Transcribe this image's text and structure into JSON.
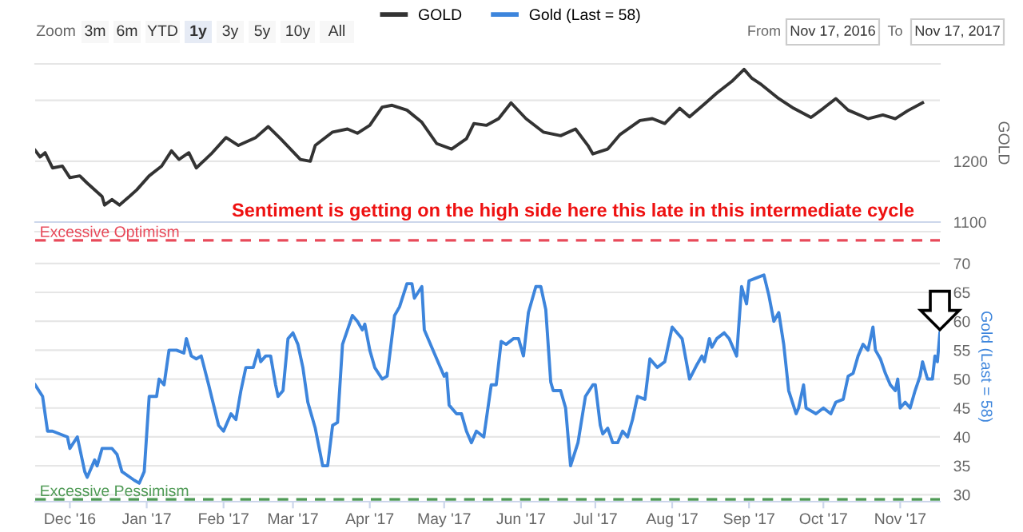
{
  "chart_data": [
    {
      "type": "line",
      "ylabel": "GOLD",
      "legend": "top",
      "grid": "y",
      "tick_labels": "y",
      "xlim": [
        "2016-11-17",
        "2017-11-17"
      ],
      "ylim": [
        1100,
        1360
      ],
      "yticks": [
        1100,
        1200,
        {
          "value": 1300,
          "label": null
        }
      ],
      "annotations": [
        "Zoom",
        "3m",
        "6m",
        "YTD",
        "1y",
        "3y",
        "5y",
        "10y",
        "All",
        "From",
        "Nov 17, 2016",
        "To",
        "Nov 17, 2017"
      ],
      "series": [
        {
          "name": "GOLD",
          "color": "#333333",
          "x": [
            "2016-11-17",
            "2016-11-19",
            "2016-11-21",
            "2016-11-24",
            "2016-11-28",
            "2016-12-01",
            "2016-12-05",
            "2016-12-08",
            "2016-12-14",
            "2016-12-15",
            "2016-12-18",
            "2016-12-21",
            "2016-12-25",
            "2016-12-28",
            "2017-01-02",
            "2017-01-07",
            "2017-01-11",
            "2017-01-14",
            "2017-01-18",
            "2017-01-21",
            "2017-01-27",
            "2017-02-02",
            "2017-02-07",
            "2017-02-14",
            "2017-02-19",
            "2017-02-24",
            "2017-03-04",
            "2017-03-08",
            "2017-03-10",
            "2017-03-17",
            "2017-03-23",
            "2017-03-27",
            "2017-04-01",
            "2017-04-06",
            "2017-04-10",
            "2017-04-16",
            "2017-04-22",
            "2017-04-28",
            "2017-05-04",
            "2017-05-10",
            "2017-05-13",
            "2017-05-18",
            "2017-05-23",
            "2017-05-28",
            "2017-06-03",
            "2017-06-10",
            "2017-06-17",
            "2017-06-23",
            "2017-06-28",
            "2017-06-30",
            "2017-07-06",
            "2017-07-11",
            "2017-07-19",
            "2017-07-24",
            "2017-07-29",
            "2017-08-04",
            "2017-08-08",
            "2017-08-14",
            "2017-08-19",
            "2017-08-25",
            "2017-08-30",
            "2017-09-02",
            "2017-09-06",
            "2017-09-13",
            "2017-09-19",
            "2017-09-26",
            "2017-10-01",
            "2017-10-06",
            "2017-10-11",
            "2017-10-19",
            "2017-10-25",
            "2017-10-30",
            "2017-11-04",
            "2017-11-10"
          ],
          "values": [
            1218,
            1207,
            1214,
            1189,
            1192,
            1173,
            1176,
            1164,
            1142,
            1128,
            1137,
            1128,
            1142,
            1153,
            1176,
            1192,
            1217,
            1203,
            1214,
            1189,
            1212,
            1239,
            1226,
            1239,
            1257,
            1237,
            1203,
            1200,
            1226,
            1248,
            1253,
            1246,
            1259,
            1289,
            1292,
            1284,
            1264,
            1229,
            1220,
            1237,
            1262,
            1259,
            1270,
            1296,
            1270,
            1248,
            1242,
            1253,
            1226,
            1212,
            1220,
            1244,
            1267,
            1270,
            1262,
            1287,
            1273,
            1294,
            1312,
            1331,
            1351,
            1337,
            1326,
            1303,
            1287,
            1272,
            1287,
            1303,
            1284,
            1270,
            1276,
            1270,
            1283,
            1296
          ]
        }
      ]
    },
    {
      "type": "line",
      "ylabel": "Gold (Last = 58)",
      "legend": "top",
      "grid": "y",
      "xlim": [
        "2016-11-17",
        "2017-11-17"
      ],
      "ylim": [
        28.8,
        75.5
      ],
      "yticks": [
        30,
        35,
        40,
        45,
        50,
        55,
        60,
        65,
        70
      ],
      "xticks": [
        {
          "value": "2016-12-01",
          "label": "Dec '16"
        },
        {
          "value": "2017-01-01",
          "label": "Jan '17"
        },
        {
          "value": "2017-02-01",
          "label": "Feb '17"
        },
        {
          "value": "2017-03-01",
          "label": "Mar '17"
        },
        {
          "value": "2017-04-01",
          "label": "Apr '17"
        },
        {
          "value": "2017-05-01",
          "label": "May '17"
        },
        {
          "value": "2017-06-01",
          "label": "Jun '17"
        },
        {
          "value": "2017-07-01",
          "label": "Jul '17"
        },
        {
          "value": "2017-08-01",
          "label": "Aug '17"
        },
        {
          "value": "2017-09-01",
          "label": "Sep '17"
        },
        {
          "value": "2017-10-01",
          "label": "Oct '17"
        },
        {
          "value": "2017-11-01",
          "label": "Nov '17"
        }
      ],
      "ref_lines": [
        {
          "axis": "y",
          "value": 74,
          "label": "Excessive Optimism",
          "color": "#e84a5a",
          "line_style": "dashed"
        },
        {
          "axis": "y",
          "value": 29.2,
          "label": "Excessive Pessimism",
          "color": "#4f9a55",
          "line_style": "dashed"
        }
      ],
      "annotations": [
        "Sentiment is getting on the high side here this late in this intermediate cycle"
      ],
      "series": [
        {
          "name": "Gold (Last = 58)",
          "color": "#3d85dc",
          "x": [
            "2016-11-17",
            "2016-11-20",
            "2016-11-22",
            "2016-11-24",
            "2016-11-30",
            "2016-12-01",
            "2016-12-04",
            "2016-12-07",
            "2016-12-08",
            "2016-12-11",
            "2016-12-12",
            "2016-12-14",
            "2016-12-18",
            "2016-12-20",
            "2016-12-22",
            "2016-12-27",
            "2016-12-29",
            "2016-12-31",
            "2017-01-02",
            "2017-01-05",
            "2017-01-06",
            "2017-01-08",
            "2017-01-10",
            "2017-01-13",
            "2017-01-16",
            "2017-01-17",
            "2017-01-19",
            "2017-01-21",
            "2017-01-23",
            "2017-01-26",
            "2017-01-30",
            "2017-02-01",
            "2017-02-04",
            "2017-02-06",
            "2017-02-08",
            "2017-02-10",
            "2017-02-13",
            "2017-02-15",
            "2017-02-16",
            "2017-02-18",
            "2017-02-20",
            "2017-02-22",
            "2017-02-23",
            "2017-02-25",
            "2017-02-27",
            "2017-03-01",
            "2017-03-03",
            "2017-03-05",
            "2017-03-07",
            "2017-03-10",
            "2017-03-13",
            "2017-03-15",
            "2017-03-17",
            "2017-03-19",
            "2017-03-21",
            "2017-03-25",
            "2017-03-27",
            "2017-03-29",
            "2017-03-30",
            "2017-04-01",
            "2017-04-03",
            "2017-04-06",
            "2017-04-08",
            "2017-04-11",
            "2017-04-13",
            "2017-04-16",
            "2017-04-18",
            "2017-04-19",
            "2017-04-22",
            "2017-04-23",
            "2017-04-26",
            "2017-05-01",
            "2017-05-02",
            "2017-05-03",
            "2017-05-06",
            "2017-05-08",
            "2017-05-10",
            "2017-05-12",
            "2017-05-14",
            "2017-05-17",
            "2017-05-20",
            "2017-05-22",
            "2017-05-24",
            "2017-05-26",
            "2017-05-29",
            "2017-05-31",
            "2017-06-02",
            "2017-06-04",
            "2017-06-07",
            "2017-06-09",
            "2017-06-11",
            "2017-06-13",
            "2017-06-14",
            "2017-06-17",
            "2017-06-19",
            "2017-06-21",
            "2017-06-24",
            "2017-06-27",
            "2017-06-30",
            "2017-07-01",
            "2017-07-03",
            "2017-07-04",
            "2017-07-06",
            "2017-07-08",
            "2017-07-10",
            "2017-07-12",
            "2017-07-14",
            "2017-07-16",
            "2017-07-18",
            "2017-07-21",
            "2017-07-23",
            "2017-07-26",
            "2017-07-29",
            "2017-08-01",
            "2017-08-05",
            "2017-08-08",
            "2017-08-11",
            "2017-08-13",
            "2017-08-14",
            "2017-08-16",
            "2017-08-17",
            "2017-08-19",
            "2017-08-22",
            "2017-08-24",
            "2017-08-27",
            "2017-08-29",
            "2017-08-31",
            "2017-09-01",
            "2017-09-04",
            "2017-09-07",
            "2017-09-09",
            "2017-09-11",
            "2017-09-13",
            "2017-09-15",
            "2017-09-17",
            "2017-09-20",
            "2017-09-21",
            "2017-09-23",
            "2017-09-24",
            "2017-09-28",
            "2017-10-01",
            "2017-10-04",
            "2017-10-06",
            "2017-10-09",
            "2017-10-11",
            "2017-10-13",
            "2017-10-15",
            "2017-10-17",
            "2017-10-19",
            "2017-10-21",
            "2017-10-22",
            "2017-10-24",
            "2017-10-26",
            "2017-10-28",
            "2017-10-30",
            "2017-10-31",
            "2017-11-01",
            "2017-11-03",
            "2017-11-05",
            "2017-11-07",
            "2017-11-09",
            "2017-11-10",
            "2017-11-12",
            "2017-11-14",
            "2017-11-15",
            "2017-11-16",
            "2017-11-17"
          ],
          "values": [
            49,
            47,
            41,
            41,
            40,
            38,
            40,
            34,
            33,
            36,
            35,
            38,
            38,
            37,
            34,
            32.5,
            32,
            34,
            47,
            47,
            50,
            49,
            55,
            55,
            54.5,
            57,
            54,
            53.5,
            54,
            49,
            42,
            41,
            44,
            43,
            48,
            52,
            52,
            55,
            53,
            54,
            54,
            49,
            47,
            48,
            57,
            58,
            56,
            52,
            46,
            41.5,
            35,
            35,
            42,
            42.5,
            56,
            61,
            60,
            58.5,
            59.5,
            55,
            52,
            50,
            50.5,
            61,
            62.5,
            66.5,
            66.5,
            64,
            66,
            58.5,
            55.5,
            50.5,
            51,
            45.5,
            44,
            44,
            41,
            39,
            41,
            40,
            49,
            49,
            56.5,
            56,
            57,
            57,
            54,
            61.5,
            66,
            66,
            62,
            49.5,
            48,
            48,
            45,
            35,
            39,
            47,
            49,
            49,
            42,
            40.5,
            41.5,
            39,
            39,
            41,
            40,
            43,
            47,
            46.5,
            53.5,
            52,
            53,
            59,
            57,
            50,
            52.5,
            54,
            53,
            57,
            55.5,
            57,
            58,
            57,
            54,
            66,
            63,
            67,
            67.5,
            68,
            64.5,
            60,
            61.5,
            56,
            48,
            44,
            45,
            49,
            45,
            44,
            45,
            44,
            46,
            46.5,
            50.5,
            51,
            54,
            56,
            55,
            59,
            55,
            53.5,
            51,
            49,
            48,
            50,
            45,
            46,
            45,
            48,
            50.5,
            53,
            50,
            50,
            54,
            53,
            58
          ]
        }
      ]
    }
  ]
}
